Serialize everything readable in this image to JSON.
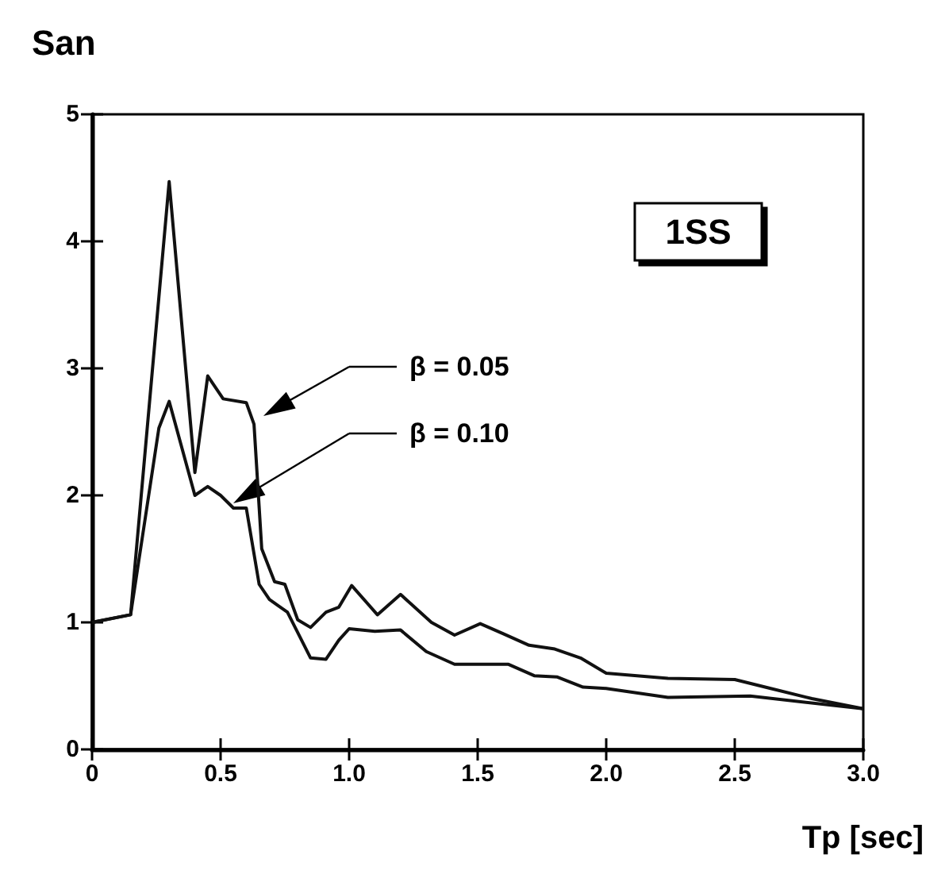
{
  "chart_data": {
    "type": "line",
    "ylabel": "San",
    "xlabel": "Tp [sec]",
    "xlim": [
      0,
      3
    ],
    "ylim": [
      0,
      5
    ],
    "xticks": [
      0,
      {
        "value": 0.5,
        "label": "0.5"
      },
      {
        "value": 1,
        "label": "1.0"
      },
      {
        "value": 1.5,
        "label": "1.5"
      },
      {
        "value": 2,
        "label": "2.0"
      },
      {
        "value": 2.5,
        "label": "2.5"
      },
      {
        "value": 3,
        "label": "3.0"
      }
    ],
    "yticks": [
      0,
      1,
      2,
      3,
      4,
      5
    ],
    "grid": false,
    "marker": "none",
    "line_style": "solid",
    "series": [
      {
        "color": "#111111",
        "x": [
          0,
          0.15,
          0.3,
          0.4,
          0.45,
          0.51,
          0.6,
          0.63,
          0.66,
          0.71,
          0.75,
          0.8,
          0.85,
          0.91,
          0.96,
          1.01,
          1.11,
          1.2,
          1.32,
          1.41,
          1.51,
          1.6,
          1.7,
          1.8,
          1.9,
          2.0,
          2.24,
          2.5,
          2.64,
          2.8,
          3.0
        ],
        "values": [
          1.0,
          1.06,
          4.47,
          2.18,
          2.94,
          2.76,
          2.73,
          2.56,
          1.58,
          1.32,
          1.3,
          1.02,
          0.96,
          1.08,
          1.12,
          1.29,
          1.06,
          1.22,
          1.0,
          0.9,
          0.99,
          0.91,
          0.82,
          0.79,
          0.72,
          0.6,
          0.56,
          0.55,
          0.48,
          0.4,
          0.32
        ]
      },
      {
        "color": "#111111",
        "x": [
          0,
          0.15,
          0.26,
          0.3,
          0.4,
          0.45,
          0.5,
          0.55,
          0.6,
          0.65,
          0.69,
          0.76,
          0.85,
          0.91,
          0.96,
          1.0,
          1.1,
          1.2,
          1.3,
          1.41,
          1.62,
          1.72,
          1.81,
          1.91,
          2.0,
          2.24,
          2.56,
          3.0
        ],
        "values": [
          1.0,
          1.06,
          2.53,
          2.74,
          2.0,
          2.07,
          2.0,
          1.9,
          1.9,
          1.3,
          1.18,
          1.08,
          0.72,
          0.71,
          0.86,
          0.95,
          0.93,
          0.94,
          0.77,
          0.67,
          0.67,
          0.58,
          0.57,
          0.49,
          0.48,
          0.41,
          0.42,
          0.32
        ]
      }
    ],
    "annotations": [
      "β = 0.05",
      "β = 0.10",
      "1SS"
    ]
  }
}
